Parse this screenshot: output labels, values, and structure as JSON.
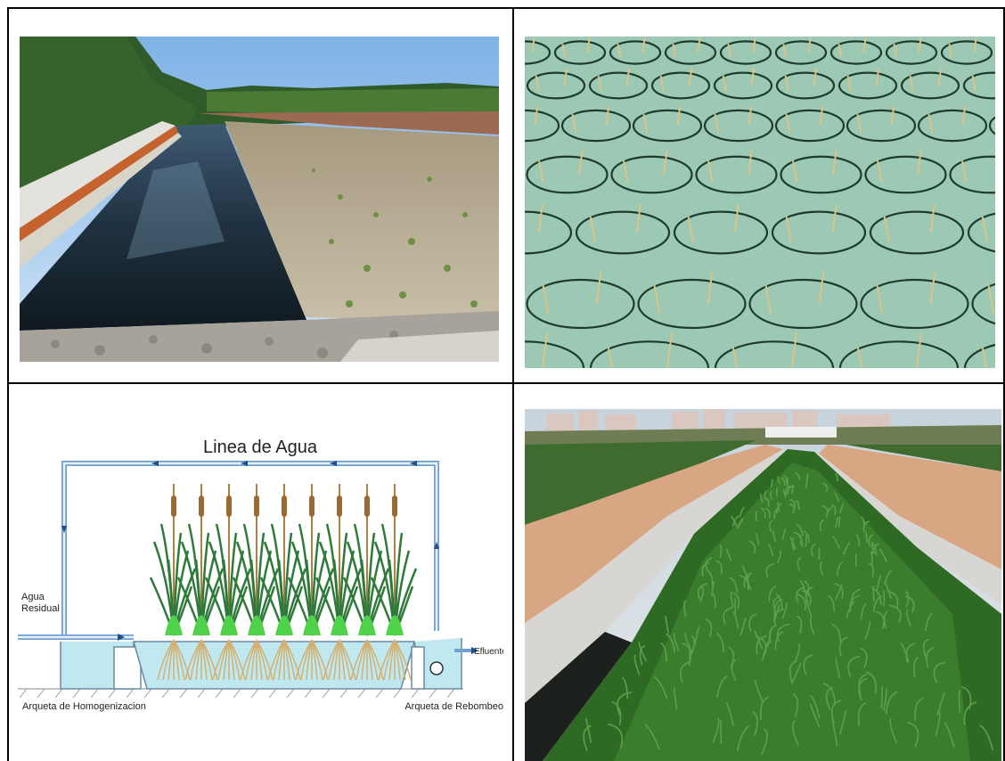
{
  "layout_grid": {
    "rows": 2,
    "columns": 2
  },
  "panels": [
    {
      "id": "top-left",
      "kind": "photo",
      "subject": "constructed wetland bed beside an open water channel"
    },
    {
      "id": "top-right",
      "kind": "photo",
      "subject": "floating circular planting rings on water with young reeds"
    },
    {
      "id": "bottom-left",
      "kind": "diagram",
      "subject": "water line schematic with reeds"
    },
    {
      "id": "bottom-right",
      "kind": "photo",
      "subject": "planted wetland channels with green grasses and city buildings"
    }
  ],
  "diagram": {
    "title": "Linea de Agua",
    "inlet_label": "Agua\nResidual",
    "outlet_label": "Efluente",
    "left_chamber_label": "Arqueta de Homogenizacion",
    "right_chamber_label": "Arqueta de Rebombeo",
    "plant_count": 9,
    "colors": {
      "pipe": "#6fa0d0",
      "water": "#bfe8f0",
      "plant_stalk": "#b08040",
      "leaves": "#2f7a3a",
      "roots": "#d4b070"
    }
  }
}
